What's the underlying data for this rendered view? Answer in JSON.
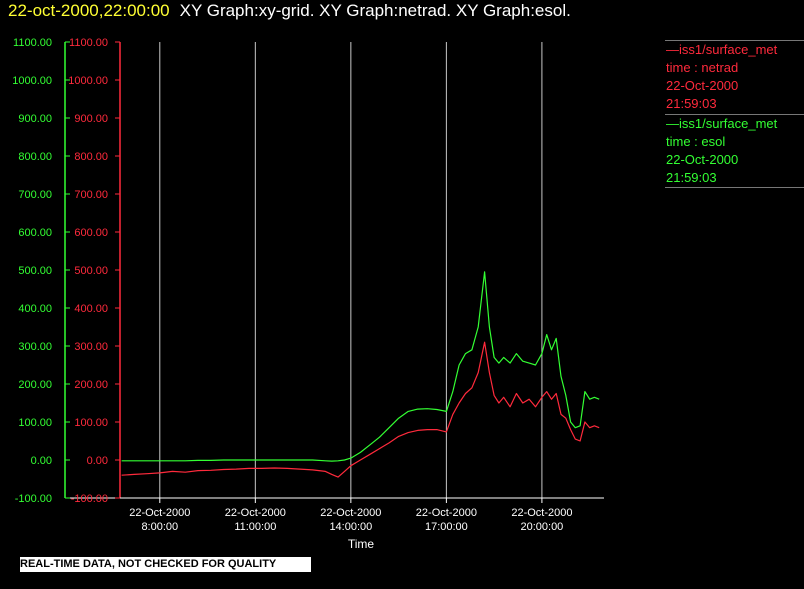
{
  "header": {
    "timestamp": "22-oct-2000,22:00:00",
    "graphs": "XY Graph:xy-grid.  XY Graph:netrad.  XY Graph:esol."
  },
  "legend": {
    "netrad": {
      "line1": "—iss1/surface_met",
      "line2": "time : netrad",
      "line3": "22-Oct-2000",
      "line4": "21:59:03"
    },
    "esol": {
      "line1": "—iss1/surface_met",
      "line2": "time : esol",
      "line3": "22-Oct-2000",
      "line4": "21:59:03"
    }
  },
  "footer": {
    "note": "REAL-TIME DATA, NOT CHECKED FOR QUALITY"
  },
  "colors": {
    "netrad": "#ff2a3c",
    "esol": "#33ff33",
    "grid": "#c8c8c8",
    "axis": "#ffffff",
    "title_timestamp": "#ffff33"
  },
  "chart_data": {
    "type": "line",
    "title": "",
    "xlabel": "Time",
    "ylabel": "",
    "xlim": [
      6.75,
      21.95
    ],
    "ylim": [
      -100,
      1100
    ],
    "x_ticks": [
      {
        "x": 8,
        "line1": "22-Oct-2000",
        "line2": "8:00:00"
      },
      {
        "x": 11,
        "line1": "22-Oct-2000",
        "line2": "11:00:00"
      },
      {
        "x": 14,
        "line1": "22-Oct-2000",
        "line2": "14:00:00"
      },
      {
        "x": 17,
        "line1": "22-Oct-2000",
        "line2": "17:00:00"
      },
      {
        "x": 20,
        "line1": "22-Oct-2000",
        "line2": "20:00:00"
      }
    ],
    "y_ticks": [
      -100,
      0,
      100,
      200,
      300,
      400,
      500,
      600,
      700,
      800,
      900,
      1000,
      1100
    ],
    "y_tick_labels": [
      "-100.00",
      "0.00",
      "100.00",
      "200.00",
      "300.00",
      "400.00",
      "500.00",
      "600.00",
      "700.00",
      "800.00",
      "900.00",
      "1000.00",
      "1100.00"
    ],
    "grid": "vertical lines at x ticks",
    "series": [
      {
        "name": "netrad",
        "x": [
          6.8,
          7.2,
          7.6,
          8.0,
          8.4,
          8.8,
          9.2,
          9.6,
          10.0,
          10.4,
          10.8,
          11.2,
          11.6,
          12.0,
          12.4,
          12.8,
          13.2,
          13.4,
          13.6,
          13.8,
          14.0,
          14.3,
          14.6,
          14.9,
          15.2,
          15.5,
          15.8,
          16.1,
          16.4,
          16.7,
          17.0,
          17.2,
          17.4,
          17.6,
          17.8,
          18.0,
          18.2,
          18.35,
          18.5,
          18.65,
          18.8,
          19.0,
          19.2,
          19.4,
          19.6,
          19.8,
          20.0,
          20.15,
          20.3,
          20.45,
          20.6,
          20.75,
          20.9,
          21.05,
          21.2,
          21.35,
          21.5,
          21.65,
          21.8
        ],
        "y": [
          -40,
          -38,
          -36,
          -34,
          -30,
          -32,
          -28,
          -27,
          -25,
          -24,
          -22,
          -22,
          -21,
          -22,
          -24,
          -26,
          -30,
          -38,
          -45,
          -30,
          -15,
          0,
          15,
          30,
          45,
          62,
          72,
          78,
          80,
          80,
          74,
          120,
          150,
          175,
          190,
          230,
          310,
          230,
          170,
          150,
          165,
          140,
          175,
          150,
          160,
          140,
          165,
          180,
          160,
          175,
          120,
          110,
          80,
          55,
          50,
          100,
          85,
          90,
          85
        ]
      },
      {
        "name": "esol",
        "x": [
          6.8,
          7.2,
          7.6,
          8.0,
          8.4,
          8.8,
          9.2,
          9.6,
          10.0,
          10.4,
          10.8,
          11.2,
          11.6,
          12.0,
          12.4,
          12.8,
          13.2,
          13.4,
          13.6,
          13.8,
          14.0,
          14.3,
          14.6,
          14.9,
          15.2,
          15.5,
          15.8,
          16.1,
          16.4,
          16.7,
          17.0,
          17.2,
          17.4,
          17.6,
          17.8,
          18.0,
          18.2,
          18.35,
          18.5,
          18.65,
          18.8,
          19.0,
          19.2,
          19.4,
          19.6,
          19.8,
          20.0,
          20.15,
          20.3,
          20.45,
          20.6,
          20.75,
          20.9,
          21.05,
          21.2,
          21.35,
          21.5,
          21.65,
          21.8
        ],
        "y": [
          -2,
          -2,
          -2,
          -2,
          -2,
          -2,
          -1,
          -1,
          0,
          0,
          0,
          0,
          0,
          0,
          0,
          0,
          -2,
          -3,
          -2,
          0,
          5,
          20,
          40,
          60,
          85,
          110,
          128,
          134,
          135,
          133,
          128,
          180,
          250,
          280,
          290,
          350,
          495,
          350,
          270,
          255,
          270,
          255,
          280,
          260,
          255,
          250,
          280,
          330,
          290,
          320,
          220,
          170,
          100,
          85,
          90,
          180,
          160,
          165,
          160
        ]
      }
    ]
  }
}
